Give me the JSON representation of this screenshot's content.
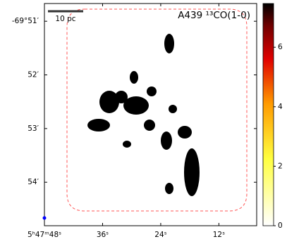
{
  "chart_data": {
    "type": "image",
    "title": "A439 ¹³CO(1-0)",
    "scale_bar_label": "10 pc",
    "xlim": [
      48,
      4.2
    ],
    "ylim": [
      50.67,
      54.81
    ],
    "xticks": [
      {
        "value": 48,
        "label": "5ʰ47ᵐ48ˢ"
      },
      {
        "value": 36,
        "label": "36ˢ"
      },
      {
        "value": 24,
        "label": "24ˢ"
      },
      {
        "value": 12,
        "label": "12ˢ"
      }
    ],
    "yticks": [
      {
        "value": 51,
        "label": "-69°51′"
      },
      {
        "value": 52,
        "label": "52′"
      },
      {
        "value": 53,
        "label": "53′"
      },
      {
        "value": 54,
        "label": "54′"
      }
    ],
    "colorbar": {
      "lim": [
        0,
        7.47
      ],
      "ticks": [
        0,
        2,
        4,
        6
      ],
      "colormap": "hot_r"
    },
    "beam_color": "#0000ff",
    "boundary_color": "#ff5555"
  }
}
